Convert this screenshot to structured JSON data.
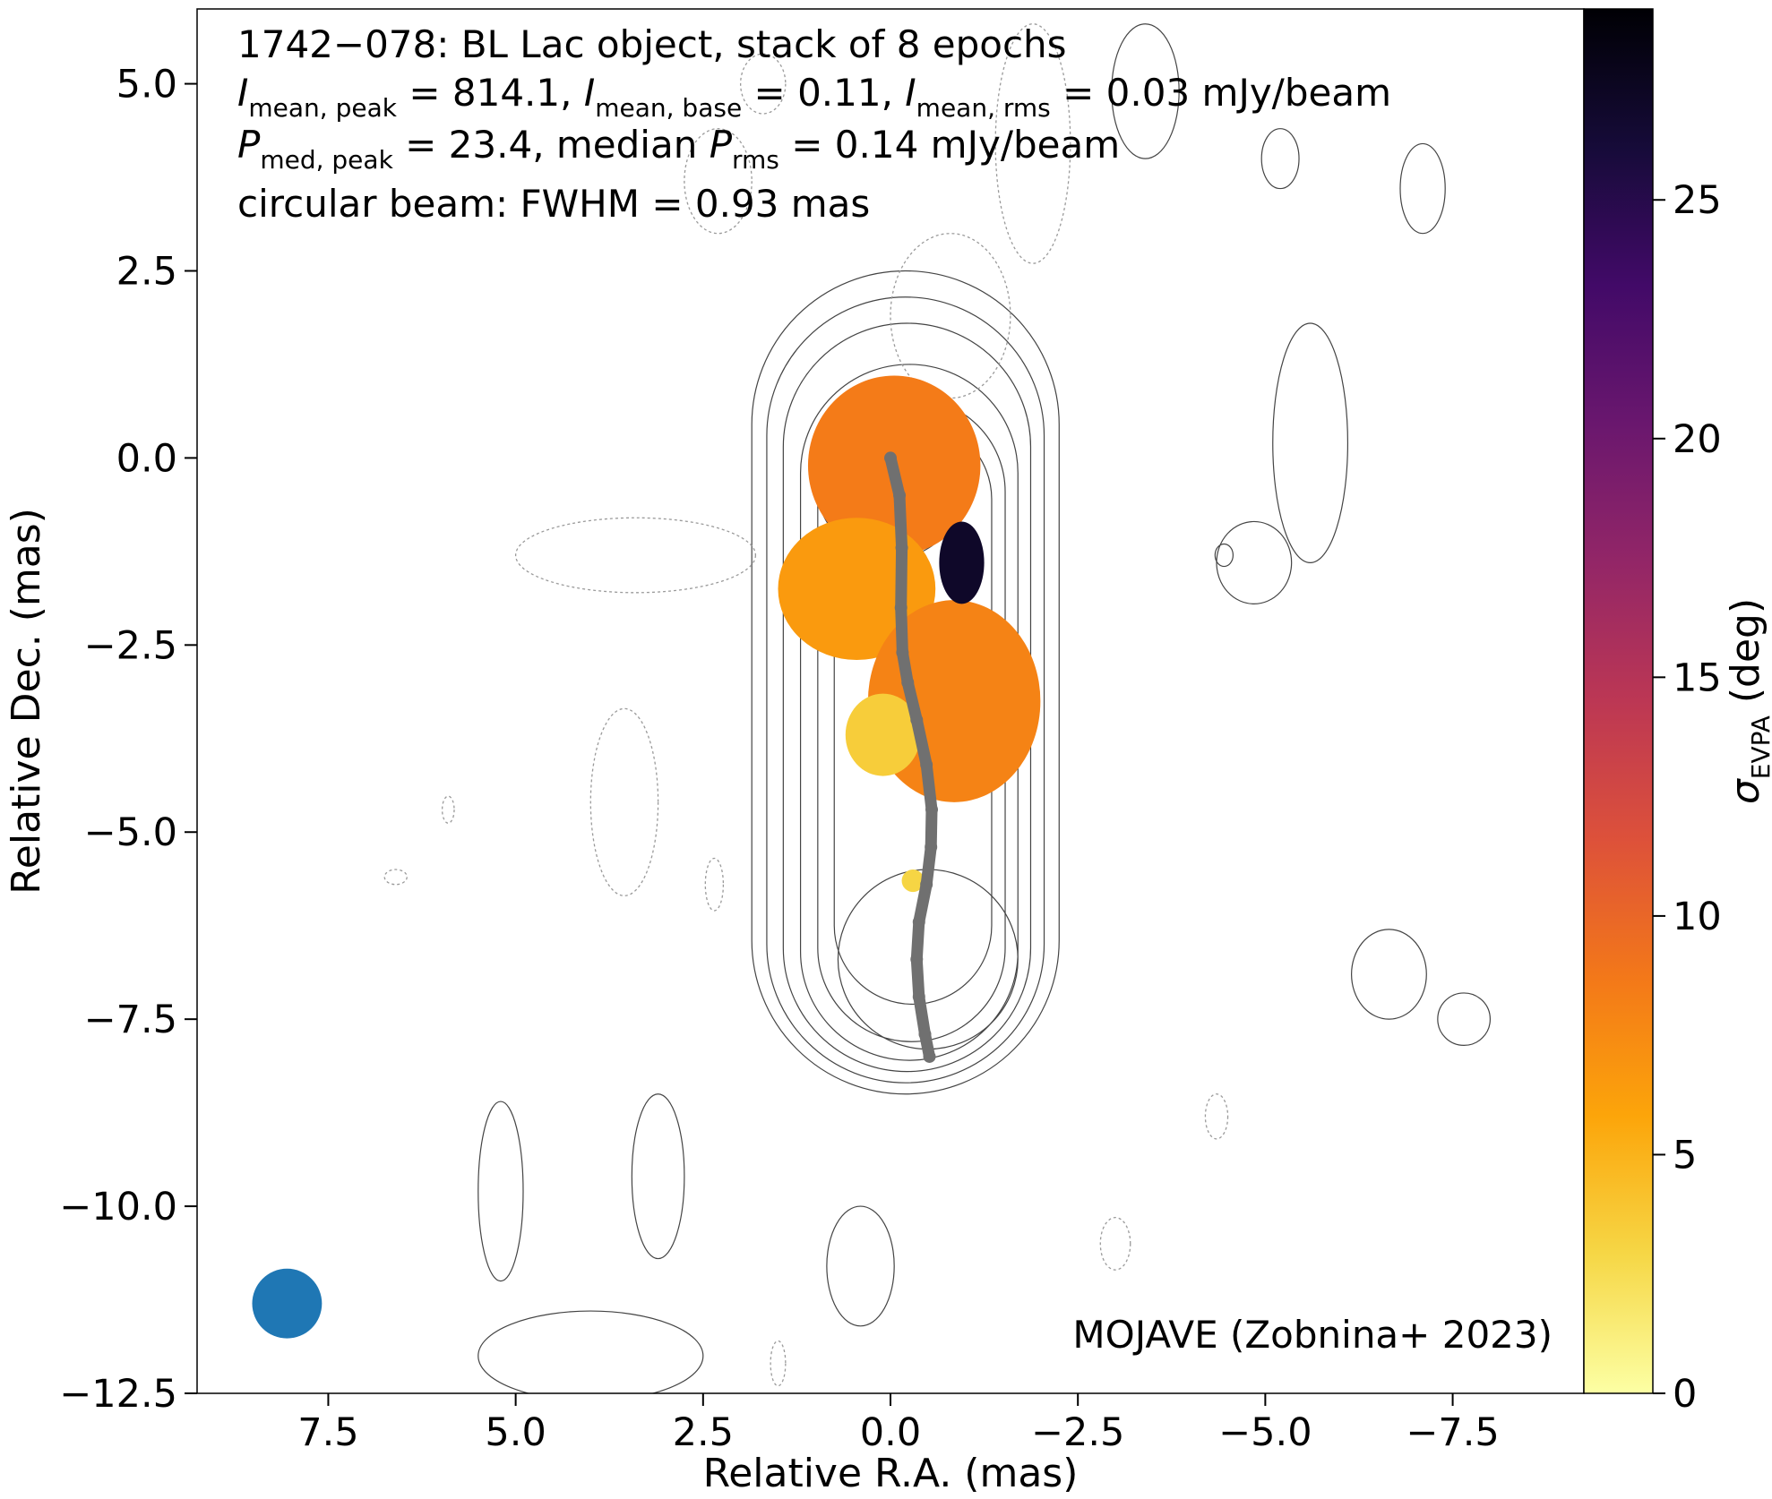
{
  "chart_data": {
    "type": "heatmap",
    "annotations": {
      "line1": "1742−078: BL Lac object, stack of 8 epochs",
      "line2": {
        "i_peak_base": "I",
        "i_peak_sub": "mean, peak",
        "i_peak_value": " = 814.1, ",
        "i_base_base": "I",
        "i_base_sub": "mean, base",
        "i_base_value": " = 0.11, ",
        "i_rms_base": "I",
        "i_rms_sub": "mean, rms",
        "i_rms_value": " = 0.03 mJy/beam"
      },
      "line3": {
        "p_peak_base": "P",
        "p_peak_sub": "med, peak",
        "p_peak_value": " = 23.4, median ",
        "p_rms_base": "P",
        "p_rms_sub": "rms",
        "p_rms_value": " = 0.14 mJy/beam"
      },
      "line4": "circular beam: FWHM = 0.93 mas",
      "credit": "MOJAVE (Zobnina+ 2023)"
    },
    "xlabel": "Relative R.A. (mas)",
    "ylabel": "Relative Dec. (mas)",
    "xlim": [
      9.25,
      -9.25
    ],
    "ylim": [
      -12.5,
      6.0
    ],
    "xticks": [
      7.5,
      5.0,
      2.5,
      0.0,
      -2.5,
      -5.0,
      -7.5
    ],
    "xtick_labels": [
      "7.5",
      "5.0",
      "2.5",
      "0.0",
      "−2.5",
      "−5.0",
      "−7.5"
    ],
    "yticks": [
      5.0,
      2.5,
      0.0,
      -2.5,
      -5.0,
      -7.5,
      -10.0,
      -12.5
    ],
    "ytick_labels": [
      "5.0",
      "2.5",
      "0.0",
      "−2.5",
      "−5.0",
      "−7.5",
      "−10.0",
      "−12.5"
    ],
    "colorbar": {
      "label_base": "σ",
      "label_sub": "EVPA",
      "label_unit": " (deg)",
      "range": [
        0,
        29
      ],
      "ticks": [
        0,
        5,
        10,
        15,
        20,
        25
      ],
      "tick_labels": [
        "0",
        "5",
        "10",
        "15",
        "20",
        "25"
      ],
      "colormap": "inferno_r"
    },
    "beam": {
      "center_x": 8.05,
      "center_y": -11.3,
      "fwhm": 0.93,
      "color": "#1f77b4"
    },
    "ridgeline": {
      "color": "#707070",
      "points": [
        [
          0.0,
          0.0
        ],
        [
          -0.12,
          -0.5
        ],
        [
          -0.15,
          -1.2
        ],
        [
          -0.14,
          -2.0
        ],
        [
          -0.16,
          -2.6
        ],
        [
          -0.23,
          -3.0
        ],
        [
          -0.35,
          -3.5
        ],
        [
          -0.48,
          -4.1
        ],
        [
          -0.55,
          -4.7
        ],
        [
          -0.54,
          -5.2
        ],
        [
          -0.48,
          -5.7
        ],
        [
          -0.38,
          -6.2
        ],
        [
          -0.35,
          -6.7
        ],
        [
          -0.38,
          -7.2
        ],
        [
          -0.46,
          -7.7
        ],
        [
          -0.52,
          -8.0
        ]
      ]
    },
    "sigma_evpa_regions": [
      {
        "name": "core",
        "cx": -0.05,
        "cy": -0.1,
        "rx": 1.15,
        "ry": 1.2,
        "value": 8.5
      },
      {
        "name": "inner-jet",
        "cx": 0.45,
        "cy": -1.75,
        "rx": 1.05,
        "ry": 0.95,
        "value": 6.5
      },
      {
        "name": "knot",
        "cx": -0.85,
        "cy": -3.25,
        "rx": 1.15,
        "ry": 1.35,
        "value": 8.0
      },
      {
        "name": "high-sigma-edge",
        "cx": -0.95,
        "cy": -1.4,
        "rx": 0.3,
        "ry": 0.55,
        "value": 27.0
      },
      {
        "name": "low-sigma-edge",
        "cx": 0.1,
        "cy": -3.7,
        "rx": 0.5,
        "ry": 0.55,
        "value": 3.5
      },
      {
        "name": "tail-spot",
        "cx": -0.3,
        "cy": -5.65,
        "rx": 0.15,
        "ry": 0.15,
        "value": 3.0
      }
    ],
    "contours": [
      {
        "type": "jet",
        "cx": -0.2,
        "cy": -3.0,
        "hw": 2.05,
        "hh": 5.5,
        "dashed": false
      },
      {
        "type": "jet",
        "cx": -0.2,
        "cy": -3.1,
        "hw": 1.85,
        "hh": 5.25,
        "dashed": false
      },
      {
        "type": "jet",
        "cx": -0.22,
        "cy": -3.2,
        "hw": 1.65,
        "hh": 5.0,
        "dashed": false
      },
      {
        "type": "jet",
        "cx": -0.25,
        "cy": -3.4,
        "hw": 1.45,
        "hh": 4.65,
        "dashed": false
      },
      {
        "type": "jet",
        "cx": -0.28,
        "cy": -3.5,
        "hw": 1.25,
        "hh": 4.3,
        "dashed": false
      },
      {
        "type": "jet",
        "cx": -0.3,
        "cy": -3.4,
        "hw": 1.05,
        "hh": 3.9,
        "dashed": false
      },
      {
        "type": "ellipse",
        "cx": 0.0,
        "cy": -0.3,
        "rx": 1.0,
        "ry": 1.05,
        "dashed": false
      },
      {
        "type": "ellipse",
        "cx": 0.0,
        "cy": -0.15,
        "rx": 0.75,
        "ry": 0.8,
        "dashed": false
      },
      {
        "type": "ellipse",
        "cx": 0.0,
        "cy": -0.05,
        "rx": 0.5,
        "ry": 0.55,
        "dashed": false
      },
      {
        "type": "ellipse",
        "cx": 0.0,
        "cy": 0.0,
        "rx": 0.28,
        "ry": 0.3,
        "dashed": false
      },
      {
        "type": "ellipse",
        "cx": 0.35,
        "cy": -1.9,
        "rx": 0.6,
        "ry": 0.7,
        "dashed": false
      },
      {
        "type": "ellipse",
        "cx": -0.9,
        "cy": -3.2,
        "rx": 0.7,
        "ry": 0.85,
        "dashed": false
      },
      {
        "type": "ellipse",
        "cx": -0.5,
        "cy": -6.7,
        "rx": 1.2,
        "ry": 1.2,
        "dashed": false
      },
      {
        "type": "ellipse",
        "cx": -4.85,
        "cy": -1.4,
        "rx": 0.5,
        "ry": 0.55,
        "dashed": false
      },
      {
        "type": "ellipse",
        "cx": -6.65,
        "cy": -6.9,
        "rx": 0.5,
        "ry": 0.6,
        "dashed": false
      },
      {
        "type": "ellipse",
        "cx": -7.65,
        "cy": -7.5,
        "rx": 0.35,
        "ry": 0.35,
        "dashed": false
      },
      {
        "type": "ellipse",
        "cx": -4.45,
        "cy": -1.3,
        "rx": 0.12,
        "ry": 0.15,
        "dashed": false
      },
      {
        "type": "ellipse",
        "cx": -7.1,
        "cy": 3.6,
        "rx": 0.3,
        "ry": 0.6,
        "dashed": false
      },
      {
        "type": "ellipse",
        "cx": -5.6,
        "cy": 0.2,
        "rx": 0.5,
        "ry": 1.6,
        "dashed": false
      },
      {
        "type": "ellipse",
        "cx": -3.4,
        "cy": 4.9,
        "rx": 0.45,
        "ry": 0.9,
        "dashed": false
      },
      {
        "type": "ellipse",
        "cx": -5.2,
        "cy": 4.0,
        "rx": 0.25,
        "ry": 0.4,
        "dashed": false
      },
      {
        "type": "ellipse",
        "cx": 5.2,
        "cy": -9.8,
        "rx": 0.3,
        "ry": 1.2,
        "dashed": false
      },
      {
        "type": "ellipse",
        "cx": 3.1,
        "cy": -9.6,
        "rx": 0.35,
        "ry": 1.1,
        "dashed": false
      },
      {
        "type": "ellipse",
        "cx": 0.4,
        "cy": -10.8,
        "rx": 0.45,
        "ry": 0.8,
        "dashed": false
      },
      {
        "type": "ellipse",
        "cx": 4.0,
        "cy": -12.0,
        "rx": 1.5,
        "ry": 0.6,
        "dashed": false
      },
      {
        "type": "ellipse",
        "cx": 2.3,
        "cy": 3.7,
        "rx": 0.45,
        "ry": 0.7,
        "dashed": true
      },
      {
        "type": "ellipse",
        "cx": -1.9,
        "cy": 4.2,
        "rx": 0.5,
        "ry": 1.6,
        "dashed": true
      },
      {
        "type": "ellipse",
        "cx": 3.4,
        "cy": -1.3,
        "rx": 1.6,
        "ry": 0.5,
        "dashed": true
      },
      {
        "type": "ellipse",
        "cx": 3.55,
        "cy": -4.6,
        "rx": 0.45,
        "ry": 1.25,
        "dashed": true
      },
      {
        "type": "ellipse",
        "cx": 1.7,
        "cy": 5.0,
        "rx": 0.3,
        "ry": 0.4,
        "dashed": true
      },
      {
        "type": "ellipse",
        "cx": -4.35,
        "cy": -8.8,
        "rx": 0.15,
        "ry": 0.3,
        "dashed": true
      },
      {
        "type": "ellipse",
        "cx": -3.0,
        "cy": -10.5,
        "rx": 0.2,
        "ry": 0.35,
        "dashed": true
      },
      {
        "type": "ellipse",
        "cx": 2.35,
        "cy": -5.7,
        "rx": 0.12,
        "ry": 0.35,
        "dashed": true
      },
      {
        "type": "ellipse",
        "cx": 6.6,
        "cy": -5.6,
        "rx": 0.15,
        "ry": 0.1,
        "dashed": true
      },
      {
        "type": "ellipse",
        "cx": 5.9,
        "cy": -4.7,
        "rx": 0.08,
        "ry": 0.18,
        "dashed": true
      },
      {
        "type": "ellipse",
        "cx": 1.5,
        "cy": -12.1,
        "rx": 0.1,
        "ry": 0.3,
        "dashed": true
      },
      {
        "type": "ellipse",
        "cx": -0.8,
        "cy": 1.9,
        "rx": 0.8,
        "ry": 1.1,
        "dashed": true
      }
    ]
  }
}
